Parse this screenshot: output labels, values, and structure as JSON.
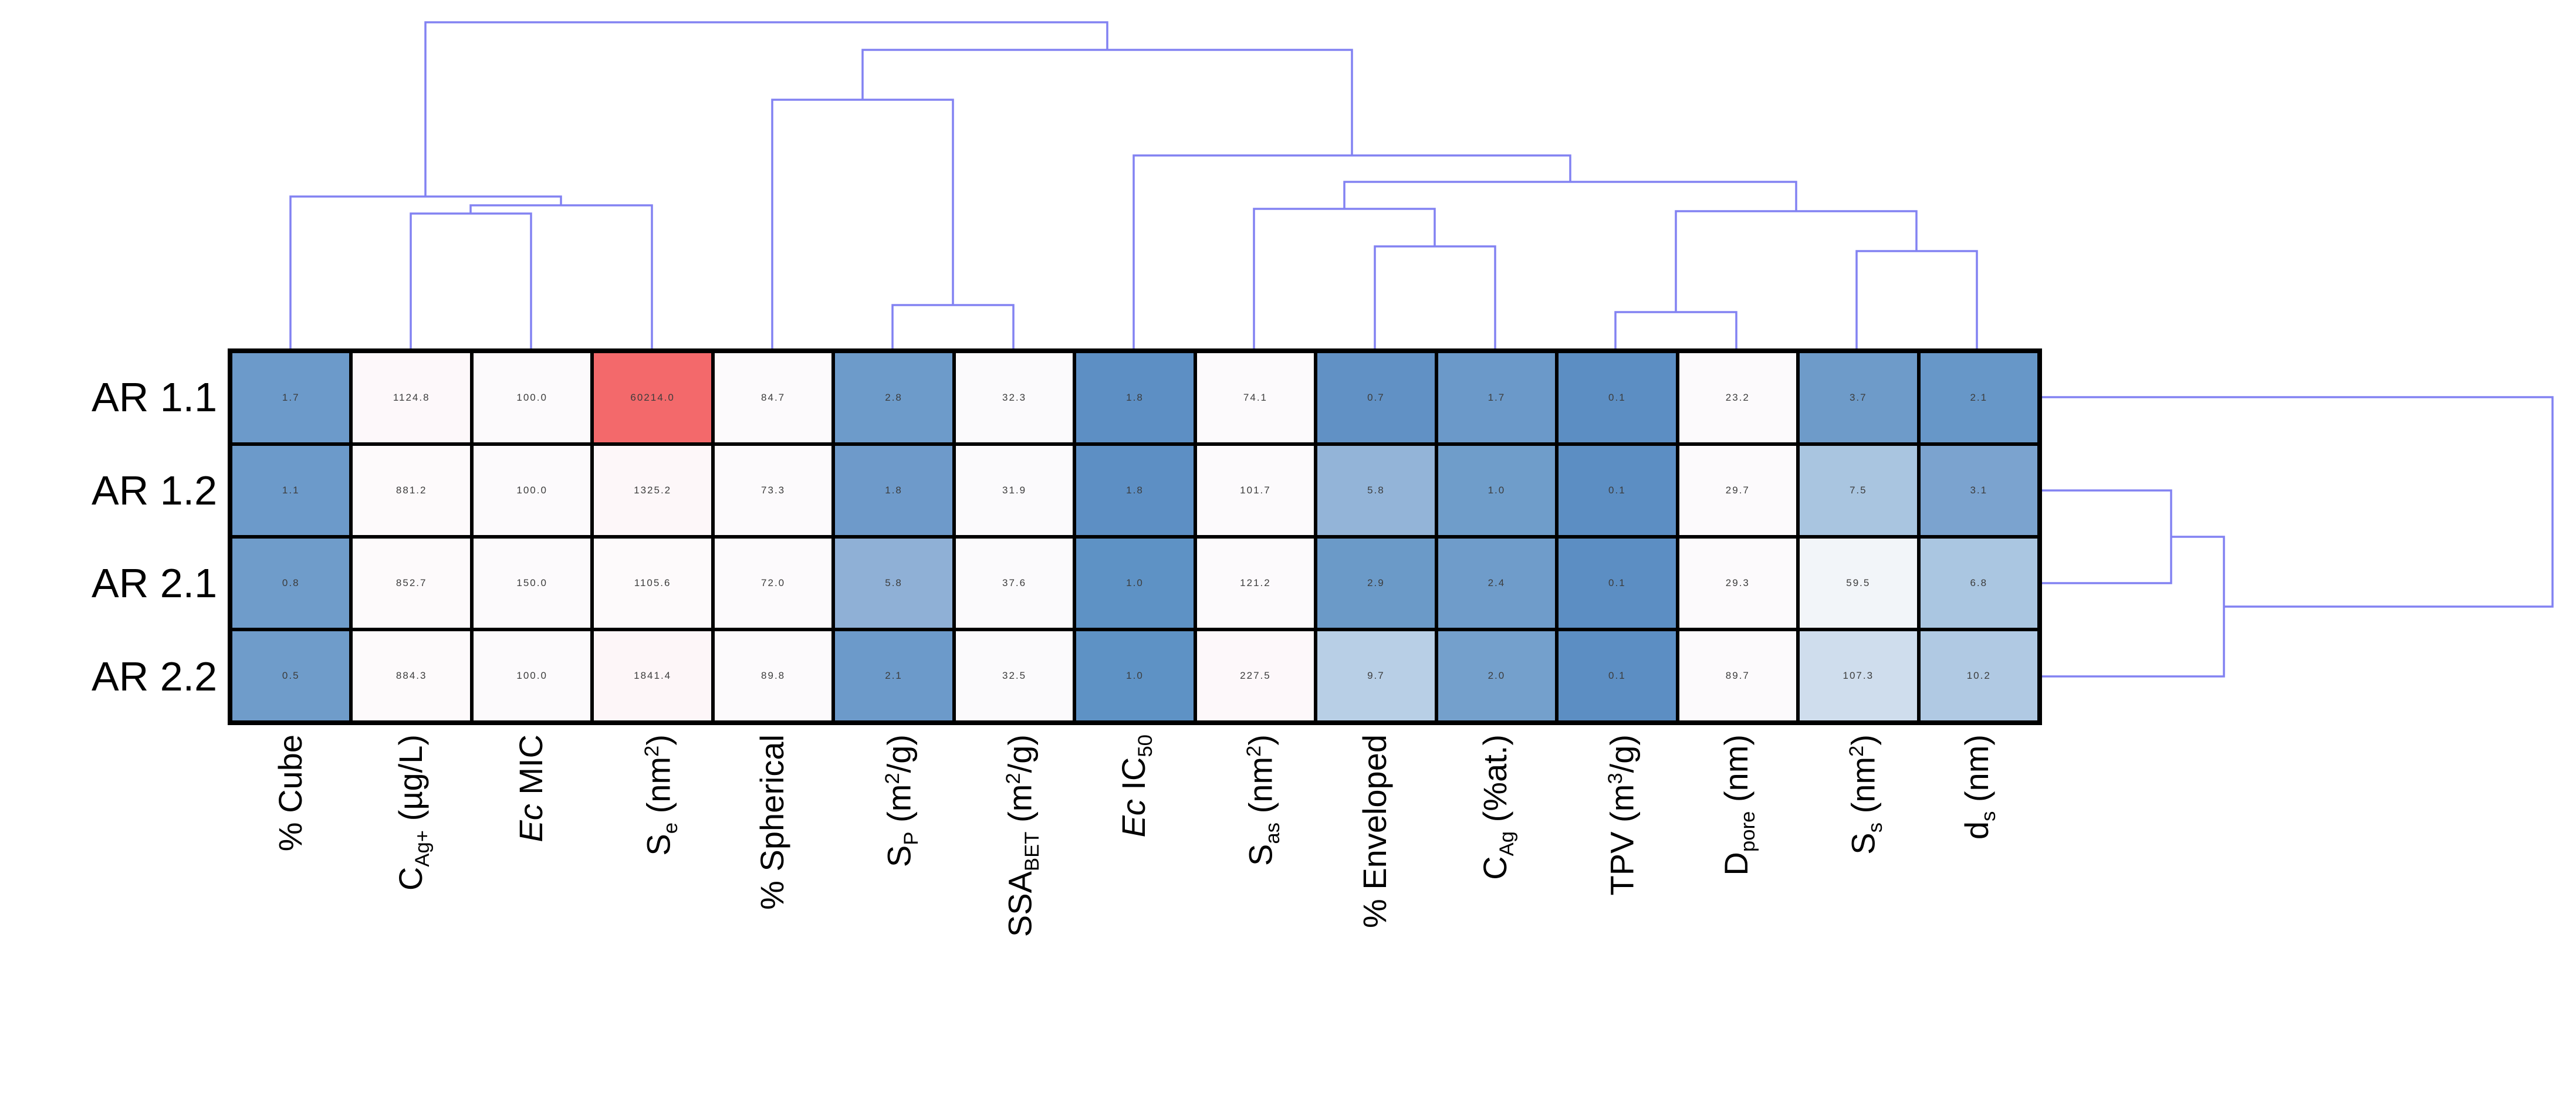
{
  "figure": {
    "background": "#ffffff",
    "kind": "hierarchical clustermap (heatmap with top and right dendrograms)"
  },
  "chart_data": {
    "type": "heatmap",
    "rows": [
      "AR 1.1",
      "AR 1.2",
      "AR 2.1",
      "AR 2.2"
    ],
    "columns": [
      "% Cube",
      "C_Ag+ (ug/L)",
      "Ec MIC",
      "S_e (nm2)",
      "% Spherical",
      "S_P (m2/g)",
      "SSA_BET (m2/g)",
      "Ec IC50",
      "S_as (nm2)",
      "% Enveloped",
      "C_Ag (%at.)",
      "TPV (m3/g)",
      "D_pore (nm)",
      "S_s (nm2)",
      "d_s (nm)"
    ],
    "columns_rich": [
      "% Cube",
      "C_{Ag+} (µg/L)",
      "*{Ec} MIC",
      "S_{e} (nm^{2})",
      "% Spherical",
      "S_{P} (m^{2}/g)",
      "SSA_{BET} (m^{2}/g)",
      "*{Ec} IC_{50}",
      "S_{as} (nm^{2})",
      "% Enveloped",
      "C_{Ag} (%at.)",
      "TPV (m^{3}/g)",
      "D_{pore} (nm)",
      "S_{s} (nm^{2})",
      "d_{s} (nm)"
    ],
    "values": [
      [
        "1.7",
        "1124.8",
        "100.0",
        "60214.0",
        "84.7",
        "2.8",
        "32.3",
        "1.8",
        "74.1",
        "0.7",
        "1.7",
        "0.1",
        "23.2",
        "3.7",
        "2.1"
      ],
      [
        "1.1",
        "881.2",
        "100.0",
        "1325.2",
        "73.3",
        "1.8",
        "31.9",
        "1.8",
        "101.7",
        "5.8",
        "1.0",
        "0.1",
        "29.7",
        "7.5",
        "3.1"
      ],
      [
        "0.8",
        "852.7",
        "150.0",
        "1105.6",
        "72.0",
        "5.8",
        "37.6",
        "1.0",
        "121.2",
        "2.9",
        "2.4",
        "0.1",
        "29.3",
        "59.5",
        "6.8"
      ],
      [
        "0.5",
        "884.3",
        "100.0",
        "1841.4",
        "89.8",
        "2.1",
        "32.5",
        "1.0",
        "227.5",
        "9.7",
        "2.0",
        "0.1",
        "89.7",
        "107.3",
        "10.2"
      ]
    ],
    "cell_colors": [
      [
        "#6c9aca",
        "#fdf8fa",
        "#fcfafc",
        "#f3696b",
        "#fcfafc",
        "#6d9bca",
        "#fbfafc",
        "#5d8fc4",
        "#fcfafc",
        "#6191c5",
        "#6b99c9",
        "#5c8ec3",
        "#fcfafc",
        "#6e9bc9",
        "#6797c8"
      ],
      [
        "#6c9aca",
        "#fdfafb",
        "#fcfafc",
        "#fdf7f9",
        "#fcfafc",
        "#6e9aca",
        "#fbfafc",
        "#5d8fc4",
        "#fcfafc",
        "#93b4d8",
        "#6f9dca",
        "#5c8ec3",
        "#fcfafc",
        "#a9c5e0",
        "#7ba3cf"
      ],
      [
        "#6f9cca",
        "#fdfafb",
        "#fcfafc",
        "#fdfafb",
        "#fcfafc",
        "#8fb0d6",
        "#fbfafc",
        "#5e92c5",
        "#fcfafc",
        "#6b9ac8",
        "#6f9cca",
        "#5c8ec3",
        "#fcfafc",
        "#f2f5f9",
        "#aac6e1"
      ],
      [
        "#6f9cca",
        "#fdfafb",
        "#fcfafc",
        "#fdf6f8",
        "#fcfafc",
        "#6c9aca",
        "#fbfafc",
        "#5e92c5",
        "#fdf8fa",
        "#b8cfe6",
        "#74a0cc",
        "#5c8ec3",
        "#fcfafc",
        "#cfdded",
        "#b0c9e3"
      ]
    ],
    "colormap": {
      "low_color": "#5c8ec3",
      "mid_color": "#fcfafc",
      "high_color": "#f3696b",
      "note": "blue = low, white = mid, red = high (single red outlier cell at AR 1.1 / S_e)"
    },
    "value_text_color": "#3c3c3c",
    "cell_border_color": "#000000",
    "legend_position": "none",
    "grid": "black cell borders",
    "dendrogram": {
      "color": "#8282f2",
      "stroke_width": 3.5,
      "top_segments": [
        [
          [
            700,
            598
          ],
          [
            700,
            364
          ],
          [
            905,
            364
          ],
          [
            905,
            598
          ]
        ],
        [
          [
            802,
            364
          ],
          [
            802,
            350
          ],
          [
            1111,
            350
          ],
          [
            1111,
            598
          ]
        ],
        [
          [
            495,
            598
          ],
          [
            495,
            335
          ],
          [
            956,
            335
          ],
          [
            956,
            350
          ]
        ],
        [
          [
            1521,
            598
          ],
          [
            1521,
            520
          ],
          [
            1727,
            520
          ],
          [
            1727,
            598
          ]
        ],
        [
          [
            1316,
            598
          ],
          [
            1316,
            170
          ],
          [
            1624,
            170
          ],
          [
            1624,
            520
          ]
        ],
        [
          [
            2753,
            598
          ],
          [
            2753,
            532
          ],
          [
            2959,
            532
          ],
          [
            2959,
            598
          ]
        ],
        [
          [
            3164,
            598
          ],
          [
            3164,
            428
          ],
          [
            3369,
            428
          ],
          [
            3369,
            598
          ]
        ],
        [
          [
            2856,
            532
          ],
          [
            2856,
            360
          ],
          [
            3266,
            360
          ],
          [
            3266,
            428
          ]
        ],
        [
          [
            2343,
            598
          ],
          [
            2343,
            420
          ],
          [
            2548,
            420
          ],
          [
            2548,
            598
          ]
        ],
        [
          [
            2137,
            598
          ],
          [
            2137,
            356
          ],
          [
            2445,
            356
          ],
          [
            2445,
            420
          ]
        ],
        [
          [
            2291,
            356
          ],
          [
            2291,
            310
          ],
          [
            3061,
            310
          ],
          [
            3061,
            360
          ]
        ],
        [
          [
            1932,
            598
          ],
          [
            1932,
            265
          ],
          [
            2676,
            265
          ],
          [
            2676,
            310
          ]
        ],
        [
          [
            1470,
            170
          ],
          [
            1470,
            85
          ],
          [
            2304,
            85
          ],
          [
            2304,
            265
          ]
        ],
        [
          [
            725,
            335
          ],
          [
            725,
            38
          ],
          [
            1887,
            38
          ],
          [
            1887,
            85
          ]
        ]
      ],
      "right_segments": [
        [
          [
            3480,
            836
          ],
          [
            3700,
            836
          ],
          [
            3700,
            994
          ],
          [
            3480,
            994
          ]
        ],
        [
          [
            3700,
            915
          ],
          [
            3790,
            915
          ],
          [
            3790,
            1153
          ],
          [
            3480,
            1153
          ]
        ],
        [
          [
            3480,
            677
          ],
          [
            4350,
            677
          ],
          [
            4350,
            1034
          ],
          [
            3790,
            1034
          ]
        ]
      ],
      "row_linkage": "((AR 1.2, AR 2.1), AR 2.2) then AR 1.1 joins last",
      "col_linkage": "((C_Ag+,Ec MIC),S_e)+%Cube | (%Spherical,(S_P,SSA_BET)) | (Ec IC50,((S_as,(%Enveloped,C_Ag)),((TPV,D_pore),(S_s,d_s))))"
    }
  }
}
